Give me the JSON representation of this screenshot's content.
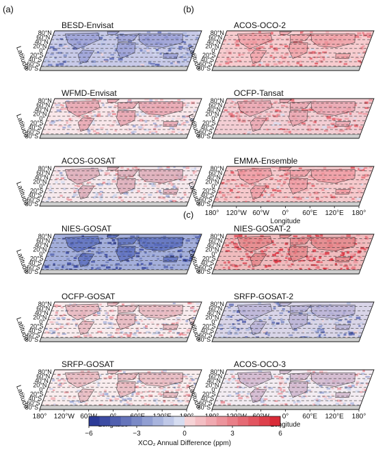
{
  "panel_labels": [
    "(a)",
    "(b)",
    "(c)"
  ],
  "maps": [
    {
      "id": "besd",
      "title": "BESD-Envisat",
      "fill": "#9a9fd6",
      "tone": "blue-light"
    },
    {
      "id": "wfmd",
      "title": "WFMD-Envisat",
      "fill": "#e7a1ac",
      "tone": "mixed"
    },
    {
      "id": "acos_gosat",
      "title": "ACOS-GOSAT",
      "fill": "#dca9b6",
      "tone": "mixed"
    },
    {
      "id": "nies_gosat",
      "title": "NIES-GOSAT",
      "fill": "#5a6dbd",
      "tone": "blue-strong"
    },
    {
      "id": "ocfp_gosat",
      "title": "OCFP-GOSAT",
      "fill": "#e6b3bb",
      "tone": "mixed"
    },
    {
      "id": "srfp_gosat",
      "title": "SRFP-GOSAT",
      "fill": "#e7b6bd",
      "tone": "mixed"
    },
    {
      "id": "acos_oco2",
      "title": "ACOS-OCO-2",
      "fill": "#f0a2a8",
      "tone": "red"
    },
    {
      "id": "ocfp_tansat",
      "title": "OCFP-Tansat",
      "fill": "#eaa6b0",
      "tone": "red"
    },
    {
      "id": "emma",
      "title": "EMMA-Ensemble",
      "fill": "#ef9ca3",
      "tone": "red"
    },
    {
      "id": "nies_gosat2",
      "title": "NIES-GOSAT-2",
      "fill": "#e48589",
      "tone": "red-strong"
    },
    {
      "id": "srfp_gosat2",
      "title": "SRFP-GOSAT-2",
      "fill": "#b9b2d6",
      "tone": "blue-light"
    },
    {
      "id": "acos_oco3",
      "title": "ACOS-OCO-3",
      "fill": "#cfb4cc",
      "tone": "mixed"
    }
  ],
  "lat_axis": {
    "label": "Latitude",
    "ticks": [
      "80°N",
      "60°N",
      "40°N",
      "20°N",
      "0°",
      "20°S",
      "40°S",
      "60°S",
      "80°S"
    ]
  },
  "lon_axis": {
    "label": "Longitude",
    "ticks": [
      "180°",
      "120°W",
      "60°W",
      "0°",
      "60°E",
      "120°E",
      "180°"
    ]
  },
  "colorbar": {
    "title": "XCO₂ Annual Difference (ppm)",
    "min": -6,
    "max": 6,
    "ticks": [
      "−6",
      "−3",
      "0",
      "3",
      "6"
    ],
    "colors": [
      "#2b3a97",
      "#3d4ca3",
      "#5160af",
      "#6675bb",
      "#7b8ac6",
      "#919fd2",
      "#a8b4dd",
      "#bfc8e7",
      "#d6ddf1",
      "#f6d3d6",
      "#f3bec3",
      "#f0a9b0",
      "#ec949c",
      "#e97f88",
      "#e56a74",
      "#e25560",
      "#de404c",
      "#d92b38"
    ]
  }
}
